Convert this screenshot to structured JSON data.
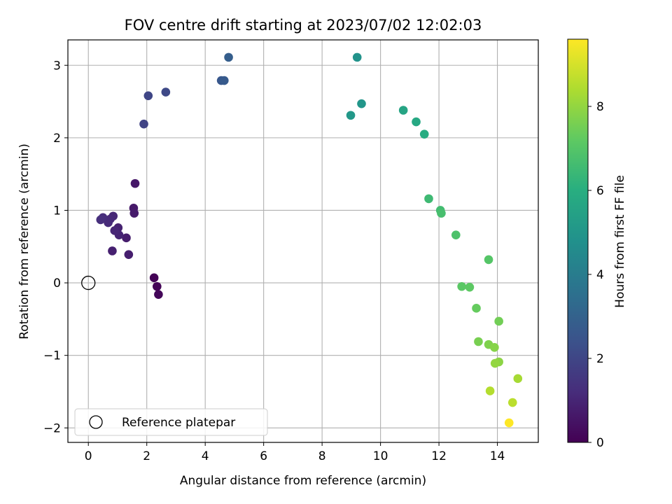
{
  "chart_data": {
    "type": "scatter",
    "title": "FOV centre drift starting at 2023/07/02 12:02:03",
    "xlabel": "Angular distance from reference (arcmin)",
    "ylabel": "Rotation from reference (arcmin)",
    "xlim": [
      -0.7,
      15.4
    ],
    "ylim": [
      -2.2,
      3.35
    ],
    "xticks": [
      0,
      2,
      4,
      6,
      8,
      10,
      12,
      14
    ],
    "yticks": [
      -2,
      -1,
      0,
      1,
      2,
      3
    ],
    "grid": true,
    "legend": {
      "position": "lower-left",
      "entries": [
        "Reference platepar"
      ]
    },
    "reference_point": {
      "x": 0,
      "y": 0,
      "label": "Reference platepar"
    },
    "colorbar": {
      "label": "Hours from first FF file",
      "colormap": "viridis",
      "range": [
        0,
        9.6
      ],
      "ticks": [
        0,
        2,
        4,
        6,
        8
      ]
    },
    "points": [
      {
        "x": 2.25,
        "y": 0.07,
        "h": 0.05
      },
      {
        "x": 2.35,
        "y": -0.05,
        "h": 0.1
      },
      {
        "x": 2.4,
        "y": -0.16,
        "h": 0.15
      },
      {
        "x": 1.6,
        "y": 1.37,
        "h": 0.6
      },
      {
        "x": 1.55,
        "y": 1.03,
        "h": 0.65
      },
      {
        "x": 1.57,
        "y": 0.96,
        "h": 0.7
      },
      {
        "x": 1.3,
        "y": 0.62,
        "h": 0.75
      },
      {
        "x": 1.38,
        "y": 0.39,
        "h": 0.8
      },
      {
        "x": 0.82,
        "y": 0.44,
        "h": 0.85
      },
      {
        "x": 1.02,
        "y": 0.76,
        "h": 0.9
      },
      {
        "x": 1.05,
        "y": 0.66,
        "h": 0.95
      },
      {
        "x": 0.9,
        "y": 0.72,
        "h": 1.0
      },
      {
        "x": 0.85,
        "y": 0.92,
        "h": 1.05
      },
      {
        "x": 0.75,
        "y": 0.88,
        "h": 1.1
      },
      {
        "x": 0.68,
        "y": 0.83,
        "h": 1.15
      },
      {
        "x": 0.5,
        "y": 0.9,
        "h": 1.2
      },
      {
        "x": 0.42,
        "y": 0.87,
        "h": 1.25
      },
      {
        "x": 1.9,
        "y": 2.19,
        "h": 1.9
      },
      {
        "x": 2.05,
        "y": 2.58,
        "h": 2.0
      },
      {
        "x": 2.65,
        "y": 2.63,
        "h": 2.1
      },
      {
        "x": 4.55,
        "y": 2.79,
        "h": 2.6
      },
      {
        "x": 4.65,
        "y": 2.79,
        "h": 2.7
      },
      {
        "x": 4.8,
        "y": 3.11,
        "h": 2.85
      },
      {
        "x": 9.2,
        "y": 3.11,
        "h": 4.9
      },
      {
        "x": 9.35,
        "y": 2.47,
        "h": 5.0
      },
      {
        "x": 8.98,
        "y": 2.31,
        "h": 5.1
      },
      {
        "x": 10.78,
        "y": 2.38,
        "h": 5.6
      },
      {
        "x": 11.22,
        "y": 2.22,
        "h": 5.75
      },
      {
        "x": 11.5,
        "y": 2.05,
        "h": 5.9
      },
      {
        "x": 11.65,
        "y": 1.16,
        "h": 6.5
      },
      {
        "x": 12.05,
        "y": 1.0,
        "h": 6.6
      },
      {
        "x": 12.08,
        "y": 0.96,
        "h": 6.7
      },
      {
        "x": 12.58,
        "y": 0.66,
        "h": 6.85
      },
      {
        "x": 13.7,
        "y": 0.32,
        "h": 7.0
      },
      {
        "x": 12.78,
        "y": -0.05,
        "h": 7.1
      },
      {
        "x": 13.05,
        "y": -0.06,
        "h": 7.15
      },
      {
        "x": 13.28,
        "y": -0.35,
        "h": 7.3
      },
      {
        "x": 14.05,
        "y": -0.53,
        "h": 7.5
      },
      {
        "x": 13.35,
        "y": -0.81,
        "h": 7.6
      },
      {
        "x": 13.7,
        "y": -0.85,
        "h": 7.7
      },
      {
        "x": 13.9,
        "y": -0.89,
        "h": 7.8
      },
      {
        "x": 14.05,
        "y": -1.09,
        "h": 7.9
      },
      {
        "x": 13.92,
        "y": -1.11,
        "h": 8.0
      },
      {
        "x": 14.7,
        "y": -1.32,
        "h": 8.3
      },
      {
        "x": 13.75,
        "y": -1.49,
        "h": 8.5
      },
      {
        "x": 14.52,
        "y": -1.65,
        "h": 8.6
      },
      {
        "x": 14.4,
        "y": -1.93,
        "h": 9.6
      }
    ]
  }
}
